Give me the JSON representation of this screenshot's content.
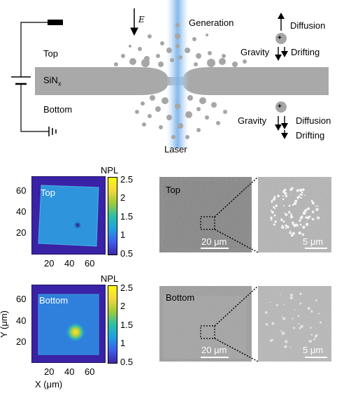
{
  "schematic": {
    "label_top": "Top",
    "label_membrane": "SiN",
    "label_membrane_sub": "x",
    "label_bottom": "Bottom",
    "label_laser": "Laser",
    "label_field": "E",
    "label_generation": "Generation",
    "label_top_diffusion": "Diffusion",
    "label_top_gravity": "Gravity",
    "label_top_drifting": "Drifting",
    "label_bottom_gravity": "Gravity",
    "label_bottom_diffusion": "Diffusion",
    "label_bottom_drifting": "Drifting",
    "charge_symbol": "+"
  },
  "maps": {
    "colorbar_label": "NPL",
    "colorbar_ticks": [
      "2.5",
      "2",
      "1.5",
      "1",
      "0.5"
    ],
    "y_ticks": [
      "60",
      "40",
      "20"
    ],
    "x_ticks": [
      "20",
      "40",
      "60"
    ],
    "x_axis_label": "X (μm)",
    "y_axis_label": "Y (μm)",
    "top_label": "Top",
    "bottom_label": "Bottom"
  },
  "sem": {
    "top_label": "Top",
    "bottom_label": "Bottom",
    "scale_large": "20 μm",
    "scale_small": "5 μm"
  },
  "colors": {
    "membrane": "#a9a9a9",
    "particle": "#a6a6a6",
    "laser": "#8fbfef",
    "map_background": "#3b24a8",
    "map_square": "#2f8fe0",
    "hot_spot": "#f0e23a"
  }
}
